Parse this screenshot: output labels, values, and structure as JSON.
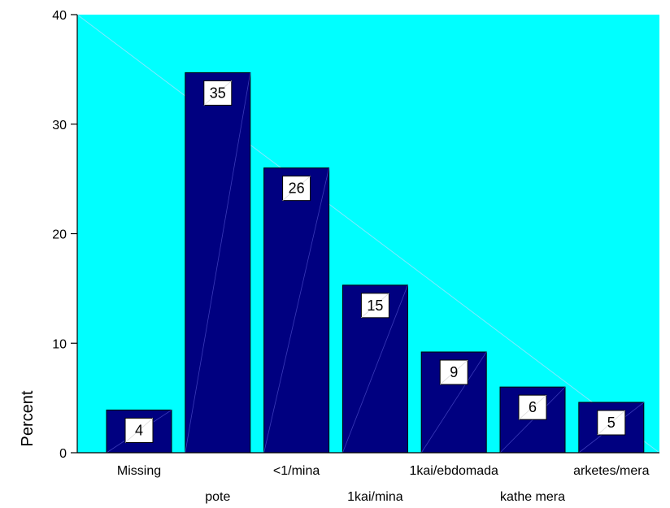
{
  "chart_data": {
    "type": "bar",
    "categories": [
      "Missing",
      "pote",
      "<1/mina",
      "1kai/mina",
      "1kai/ebdomada",
      "kathe mera",
      "arketes/mera"
    ],
    "values": [
      3.9,
      34.7,
      26.0,
      15.3,
      9.2,
      6.0,
      4.6
    ],
    "data_labels": [
      "4",
      "35",
      "26",
      "15",
      "9",
      "6",
      "5"
    ],
    "ylabel": "Percent",
    "xlabel": "",
    "ylim": [
      0,
      40
    ],
    "yticks": [
      0,
      10,
      20,
      30,
      40
    ],
    "grid": false,
    "legend": "none",
    "colors": {
      "plot_background": "#00ffff",
      "bar_fill": "#000080",
      "bar_stroke": "#000000",
      "label_box": "#ffffff"
    }
  }
}
